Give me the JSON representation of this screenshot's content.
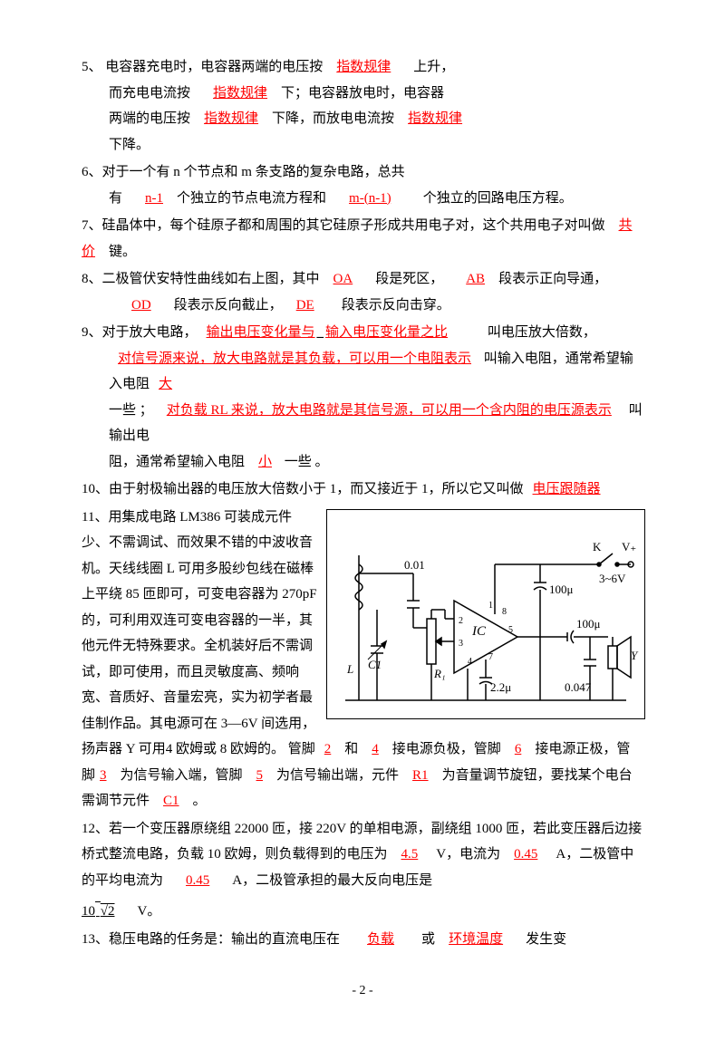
{
  "q5": {
    "num": "5、",
    "t1": "电容器充电时，电容器两端的电压按",
    "a1": "指数规律",
    "t2": "上升，",
    "t3": "而充电电流按",
    "a2": "指数规律",
    "t4": "下；电容器放电时，电容器",
    "t5": "两端的电压按",
    "a3": "指数规律",
    "t6": "下降，而放电电流按",
    "a4": "指数规律",
    "t7": "下降。"
  },
  "q6": {
    "num": "6、",
    "t1": "对于一个有 n 个节点和 m 条支路的复杂电路，总共",
    "t2": "有",
    "a1": "n-1",
    "t3": "个独立的节点电流方程和",
    "a2": "m-(n-1)",
    "t4": "个独立的回路电压方程。"
  },
  "q7": {
    "num": "7、",
    "t1": "硅晶体中，每个硅原子都和周围的其它硅原子形成共用电子对，这个共用电子对叫做",
    "a1": "共价",
    "t2": "键。"
  },
  "q8": {
    "num": "8、",
    "t1": "二极管伏安特性曲线如右上图，其中",
    "a1": "OA",
    "t2": "段是死区，",
    "a2": "AB",
    "t3": "段表示正向导通，",
    "a3": "OD",
    "t4": "段表示反向截止，",
    "a4": "DE",
    "t5": "段表示反向击穿。"
  },
  "q9": {
    "num": "9、",
    "t1": "对于放大电路，",
    "a1": "输出电压变化量与",
    "a1b": "输入电压变化量之比",
    "t2": " 叫电压放大倍数，",
    "a2": "对信号源来说，放大电路就是其负载，可以用一个电阻表示",
    "t3": " 叫输入电阻，通常希望输入电阻",
    "a3": "大",
    "t4": "一些 ；",
    "a4": "对负载 RL 来说，放大电路就是其信号源，可以用一个含内阻的电压源表示",
    "t5": " 叫输出电",
    "t6": "阻，通常希望输入电阻",
    "a5": "小",
    "t7": " 一些 。"
  },
  "q10": {
    "num": "10、",
    "t1": "由于射极输出器的电压放大倍数小于 1，而又接近于 1，所以它又叫做",
    "a1": "电压跟随器"
  },
  "q11": {
    "num": "11、",
    "body": "用集成电路 LM386 可装成元件少、不需调试、而效果不错的中波收音机。天线线圈 L 可用多股纱包线在磁棒上平绕 85 匝即可，可变电容器为 270pF 的，可利用双连可变电容器的一半，其他元件无特殊要求。全机装好后不需调试，即可使用，而且灵敏度高、频响宽、音质好、音量宏亮，实为初学者最佳制作品。其电源可在 3—6V 间选用，扬声器 Y 可用4 欧姆或 8 欧姆的。 管脚",
    "a1": "2",
    "t1": "和",
    "a2": "4",
    "t2": "接电源负极，管脚",
    "a3": "6",
    "t3": "接电源正极，管脚",
    "a4": "3",
    "t4": "为信号输入端，管脚",
    "a5": "5",
    "t5": "为信号输出端，元件",
    "a6": "R1",
    "t6": "为音量调节旋钮，要找某个电台需调节元件",
    "a7": "C1",
    "t7": "。"
  },
  "q12": {
    "num": "12、",
    "t1": "若一个变压器原绕组 22000 匝，接 220V 的单相电源，副绕组 1000 匝，若此变压器后边接桥式整流电路，负载 10 欧姆，则负载得到的电压为",
    "a1": "4.5",
    "t2": "V，电流为",
    "a2": "0.45",
    "t3": "A，二极管中的平均电流为",
    "a3": "0.45",
    "t4": "A，二极管承担的最大反向电压是",
    "a4a": "10",
    "a4b": "√2",
    "t5": "V。"
  },
  "q13": {
    "num": "13、",
    "t1": "稳压电路的任务是：输出的直流电压在",
    "a1": "负载",
    "t2": "或",
    "a2": "环境温度",
    "t3": "发生变"
  },
  "circuit": {
    "labels": {
      "k": "K",
      "vplus": "V₊",
      "volt": "3~6V",
      "c_top": "100μ",
      "c_in": "0.01",
      "ic": "IC",
      "c_out": "100μ",
      "c1": "C1",
      "l": "L",
      "r1": "R₁",
      "cfb": "2.2μ",
      "cout2": "0.047",
      "y": "Y",
      "p1": "1",
      "p2": "2",
      "p3": "3",
      "p4": "4",
      "p5": "5",
      "p7": "7",
      "p8": "8"
    }
  },
  "footer": "- 2 -"
}
